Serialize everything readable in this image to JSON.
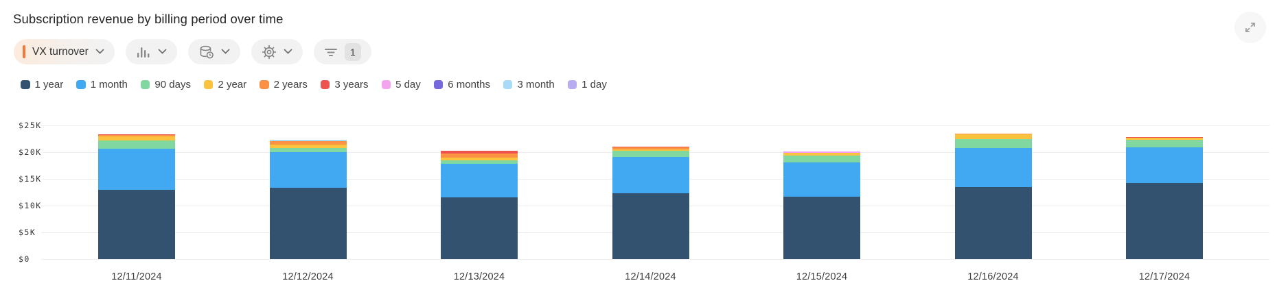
{
  "header": {
    "title": "Subscription revenue by billing period over time"
  },
  "toolbar": {
    "metric_selector": {
      "label": "VX turnover",
      "accent_color": "#f2783b",
      "icon": "chevron-down-icon"
    },
    "chart_type_button": {
      "icon": "bar-chart-icon"
    },
    "data_source_button": {
      "icon": "database-clock-icon"
    },
    "settings_button": {
      "icon": "gear-icon"
    },
    "filter_button": {
      "icon": "filter-icon",
      "badge_count": "1"
    }
  },
  "expand_button": {
    "icon": "expand-icon"
  },
  "colors": {
    "pill_background": "#f2f2f3",
    "gridline": "#ededee",
    "icon_gray": "#858585"
  },
  "chart_data": {
    "type": "bar",
    "stacked": true,
    "title": "Subscription revenue by billing period over time",
    "categories": [
      "12/11/2024",
      "12/12/2024",
      "12/13/2024",
      "12/14/2024",
      "12/15/2024",
      "12/16/2024",
      "12/17/2024"
    ],
    "series": [
      {
        "name": "1 year",
        "color": "#335270",
        "values": [
          13.0,
          13.3,
          11.6,
          12.3,
          11.7,
          13.5,
          14.2
        ]
      },
      {
        "name": "1 month",
        "color": "#41a8f2",
        "values": [
          7.6,
          6.7,
          6.2,
          6.8,
          6.4,
          7.3,
          6.7
        ]
      },
      {
        "name": "90 days",
        "color": "#80d7a0",
        "values": [
          1.6,
          0.8,
          0.6,
          1.1,
          1.3,
          1.6,
          1.4
        ]
      },
      {
        "name": "2 year",
        "color": "#fbc23d",
        "values": [
          0.7,
          0.6,
          0.6,
          0.35,
          0.5,
          0.9,
          0.4
        ]
      },
      {
        "name": "2 years",
        "color": "#fa9143",
        "values": [
          0.3,
          0.7,
          0.8,
          0.35,
          0,
          0.2,
          0
        ]
      },
      {
        "name": "3 years",
        "color": "#ee544e",
        "values": [
          0.15,
          0,
          0.5,
          0.1,
          0,
          0,
          0.1
        ]
      },
      {
        "name": "5 day",
        "color": "#f4a4ee",
        "values": [
          0,
          0,
          0,
          0,
          0.2,
          0,
          0
        ]
      },
      {
        "name": "6 months",
        "color": "#7569dd",
        "values": [
          0,
          0,
          0,
          0,
          0,
          0,
          0
        ]
      },
      {
        "name": "3 month",
        "color": "#a9daf8",
        "values": [
          0,
          0.2,
          0,
          0,
          0,
          0,
          0
        ]
      },
      {
        "name": "1 day",
        "color": "#b6acf1",
        "values": [
          0,
          0,
          0,
          0,
          0,
          0,
          0
        ]
      }
    ],
    "y_axis_tick_labels": [
      "$0",
      "$5K",
      "$10K",
      "$15K",
      "$20K",
      "$25K"
    ],
    "y_tick_values": [
      0,
      5,
      10,
      15,
      20,
      25
    ],
    "ylim": [
      0,
      25
    ],
    "ylabel": "",
    "xlabel": "",
    "grid": "horizontal",
    "legend_position": "top-left",
    "units": "USD thousands"
  }
}
